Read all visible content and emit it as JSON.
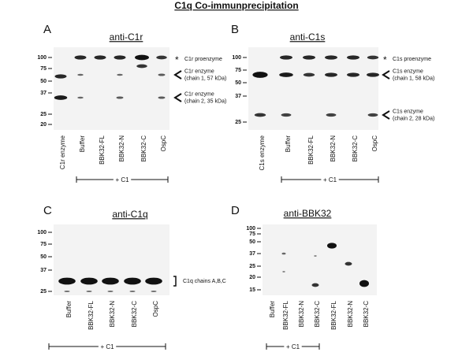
{
  "title": "C1q Co-immunprecipitation",
  "panels": [
    {
      "letter": "A",
      "title": "anti-C1r",
      "markers": [
        "100",
        "75",
        "50",
        "37",
        "25",
        "20"
      ],
      "lanes": [
        "C1r enzyme",
        "Buffer",
        "BBK32-FL",
        "BBK32-N",
        "BBK32-C",
        "OspC"
      ],
      "annotations": [
        {
          "symbol": "*",
          "lines": [
            "C1r proenzyme"
          ]
        },
        {
          "lines": [
            "C1r enzyme",
            "(chain 1, 57 kDa)"
          ]
        },
        {
          "lines": [
            "C1r enzyme",
            "(chain 2, 35 kDa)"
          ]
        }
      ],
      "group_label": "+ C1"
    },
    {
      "letter": "B",
      "title": "anti-C1s",
      "markers": [
        "100",
        "75",
        "50",
        "37",
        "25"
      ],
      "lanes": [
        "C1s enzyme",
        "Buffer",
        "BBK32-FL",
        "BBK32-N",
        "BBK32-C",
        "OspC"
      ],
      "annotations": [
        {
          "symbol": "*",
          "lines": [
            "C1s proenzyme"
          ]
        },
        {
          "lines": [
            "C1s enzyme",
            "(chain 1, 58 kDa)"
          ]
        },
        {
          "lines": [
            "C1s enzyme",
            "(chain 2, 28 kDa)"
          ]
        }
      ],
      "group_label": "+ C1"
    },
    {
      "letter": "C",
      "title": "anti-C1q",
      "markers": [
        "100",
        "75",
        "50",
        "37",
        "25"
      ],
      "lanes": [
        "Buffer",
        "BBK32-FL",
        "BBK32-N",
        "BBK32-C",
        "OspC"
      ],
      "annotations": [
        {
          "lines": [
            "C1q chains A,B,C"
          ]
        }
      ],
      "group_label": "+ C1"
    },
    {
      "letter": "D",
      "title": "anti-BBK32",
      "markers": [
        "100",
        "75",
        "50",
        "37",
        "25",
        "20",
        "15"
      ],
      "lanes": [
        "Buffer",
        "BBK32-FL",
        "BBK32-N",
        "BBK32-C",
        "BBK32-FL",
        "BBK32-N",
        "BBK32-C"
      ],
      "annotations": [],
      "group_label": "+ C1"
    }
  ]
}
